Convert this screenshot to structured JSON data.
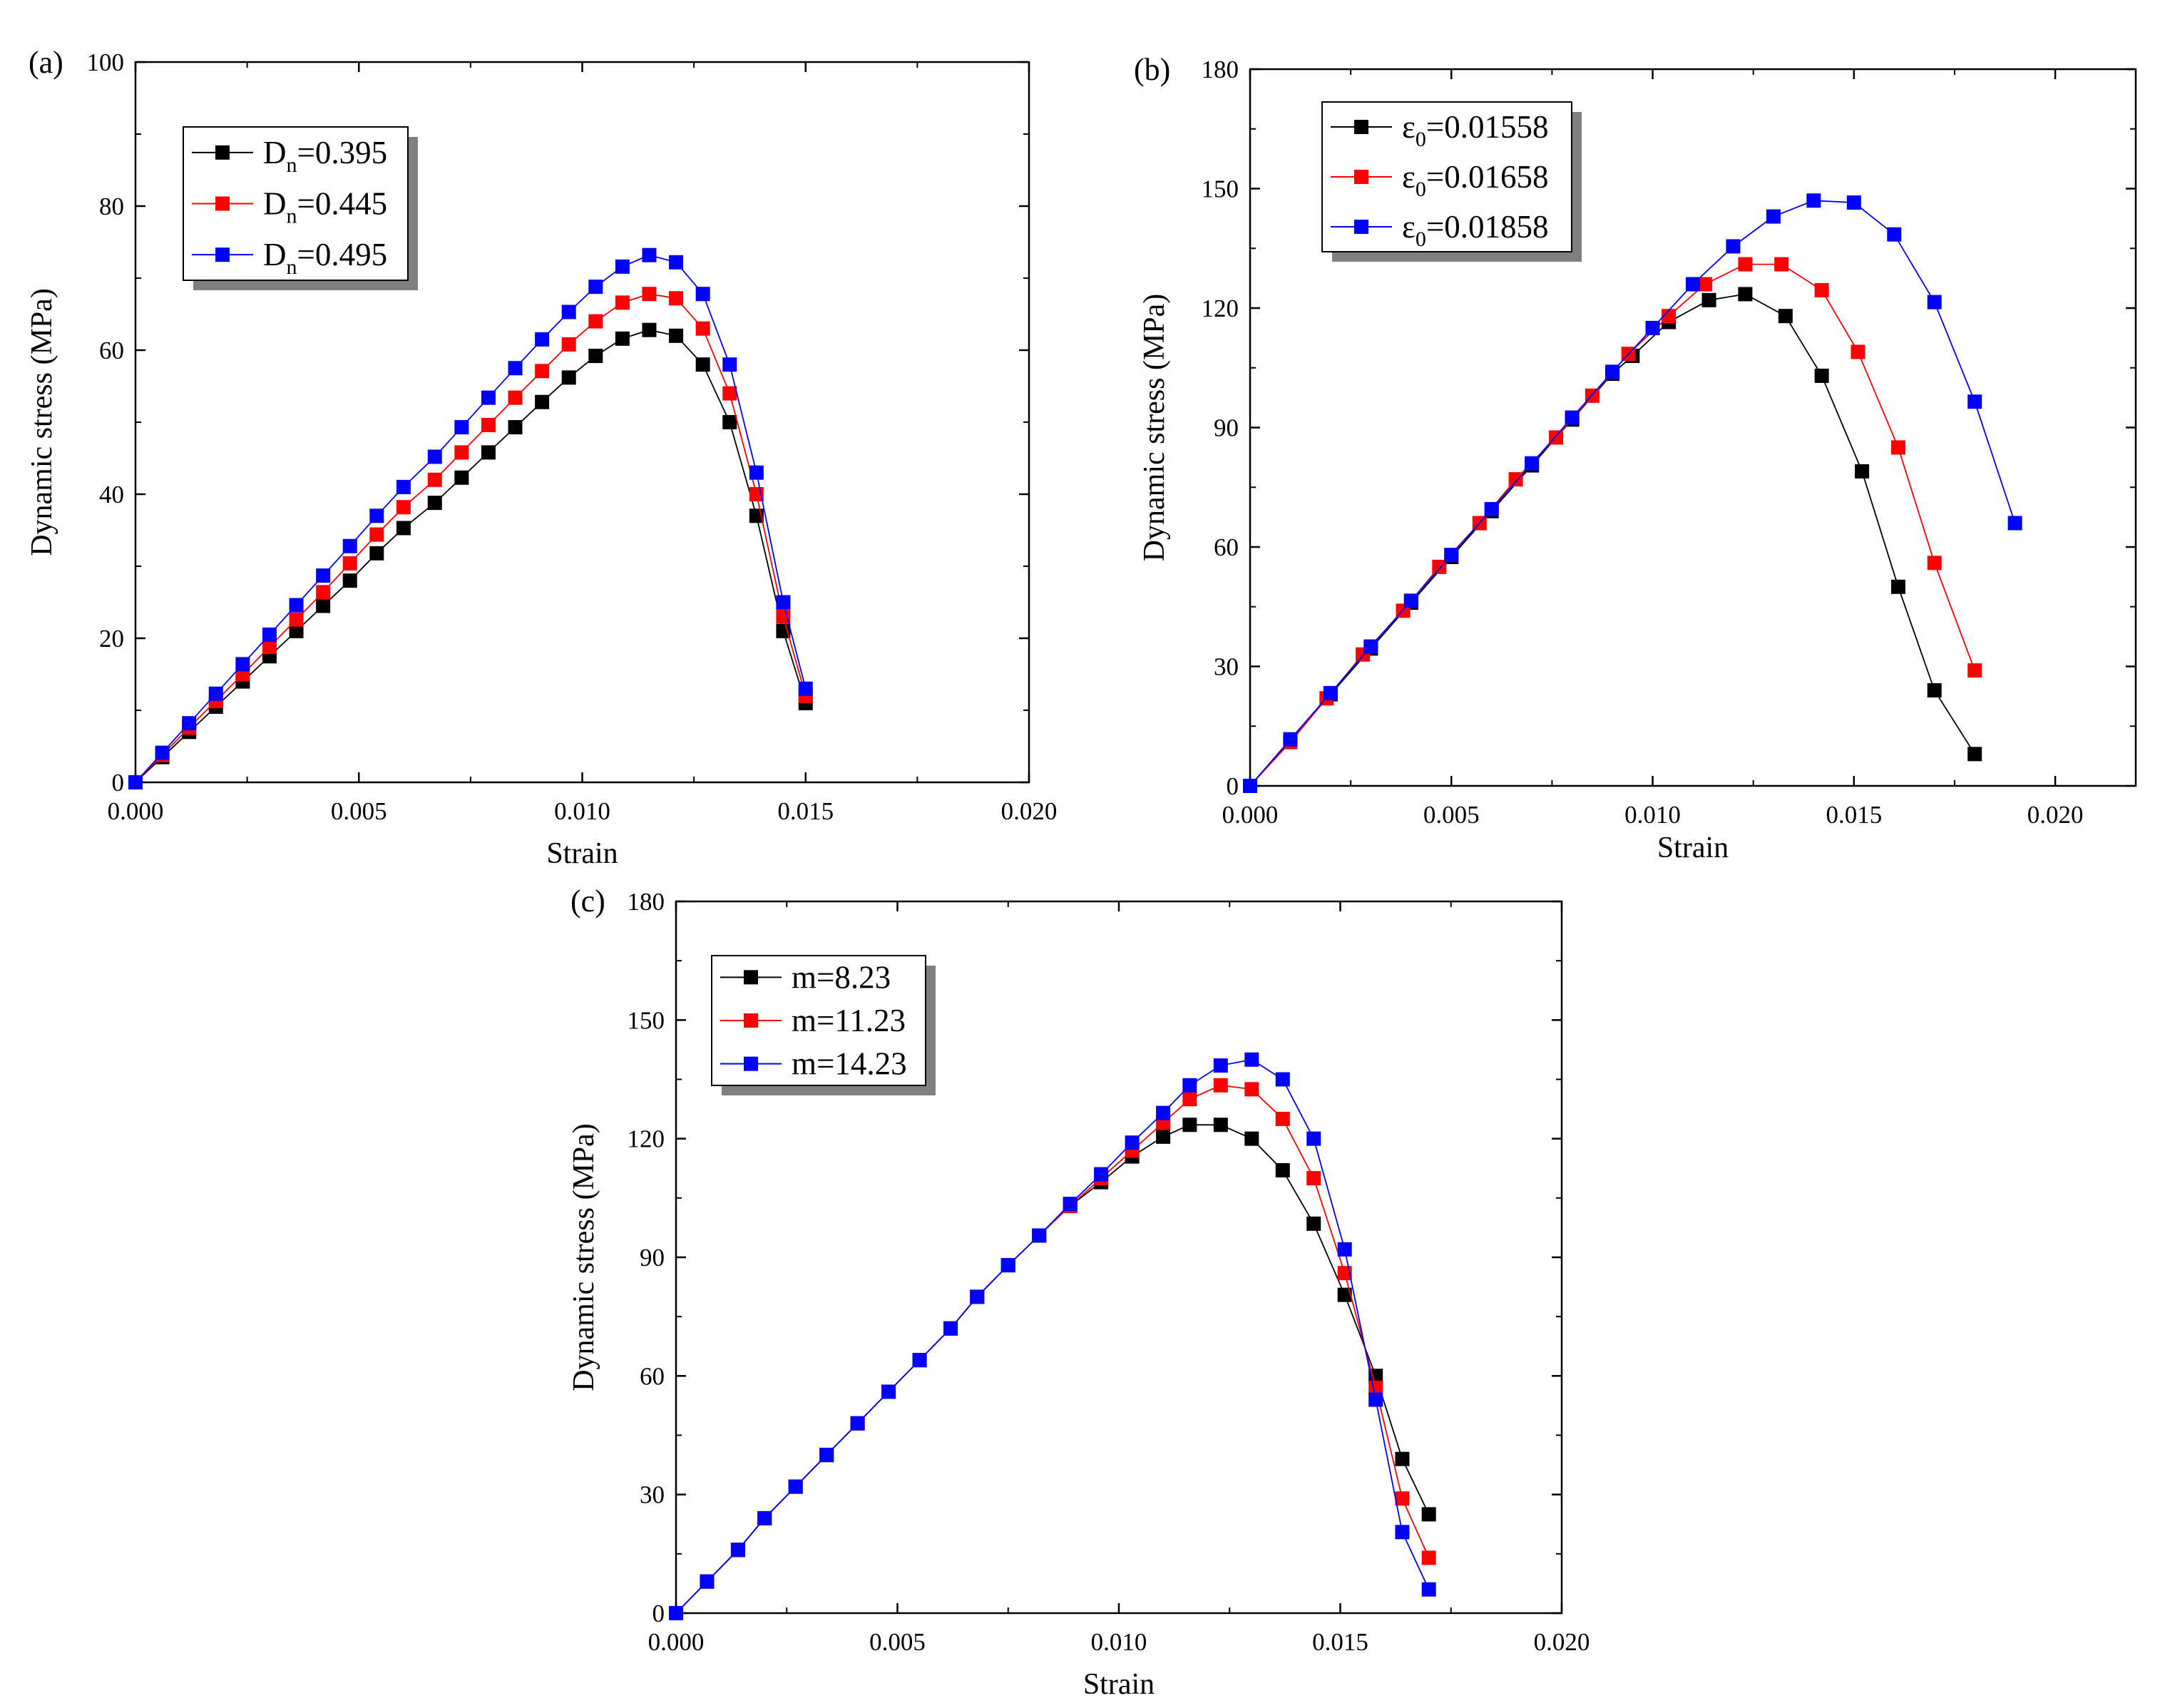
{
  "chart_data": [
    {
      "panel_label": "(a)",
      "type": "line",
      "xlabel": "Strain",
      "ylabel": "Dynamic stress (MPa)",
      "xlim": [
        0,
        0.02
      ],
      "ylim": [
        0,
        100
      ],
      "xticks": [
        "0.000",
        "0.005",
        "0.010",
        "0.015",
        "0.020"
      ],
      "yticks": [
        "0",
        "20",
        "40",
        "60",
        "80",
        "100"
      ],
      "legend": [
        {
          "main": "D",
          "sub": "n",
          "rest": "=0.395"
        },
        {
          "main": "D",
          "sub": "n",
          "rest": "=0.445"
        },
        {
          "main": "D",
          "sub": "n",
          "rest": "=0.495"
        }
      ],
      "series": [
        {
          "name": "Dn=0.395",
          "color": "#000000",
          "x": [
            0,
            0.0006,
            0.0012,
            0.0018,
            0.0024,
            0.003,
            0.0036,
            0.0042,
            0.0048,
            0.0054,
            0.006,
            0.0067,
            0.0073,
            0.0079,
            0.0085,
            0.0091,
            0.0097,
            0.0103,
            0.0109,
            0.0115,
            0.0121,
            0.0127,
            0.0133,
            0.0139,
            0.0145,
            0.015
          ],
          "y": [
            0,
            3.5,
            7,
            10.5,
            14,
            17.5,
            21,
            24.5,
            28,
            31.8,
            35.3,
            38.8,
            42.3,
            45.8,
            49.3,
            52.8,
            56.2,
            59.2,
            61.6,
            62.8,
            62,
            58,
            50,
            37,
            21,
            11
          ]
        },
        {
          "name": "Dn=0.445",
          "color": "#ff0000",
          "x": [
            0,
            0.0006,
            0.0012,
            0.0018,
            0.0024,
            0.003,
            0.0036,
            0.0042,
            0.0048,
            0.0054,
            0.006,
            0.0067,
            0.0073,
            0.0079,
            0.0085,
            0.0091,
            0.0097,
            0.0103,
            0.0109,
            0.0115,
            0.0121,
            0.0127,
            0.0133,
            0.0139,
            0.0145,
            0.015
          ],
          "y": [
            0,
            3.8,
            7.6,
            11.3,
            15,
            18.8,
            22.6,
            26.4,
            30.4,
            34.4,
            38.2,
            42,
            45.8,
            49.6,
            53.4,
            57.1,
            60.8,
            64,
            66.6,
            67.8,
            67.2,
            63,
            54,
            40,
            23,
            12
          ]
        },
        {
          "name": "Dn=0.495",
          "color": "#0000ff",
          "x": [
            0,
            0.0006,
            0.0012,
            0.0018,
            0.0024,
            0.003,
            0.0036,
            0.0042,
            0.0048,
            0.0054,
            0.006,
            0.0067,
            0.0073,
            0.0079,
            0.0085,
            0.0091,
            0.0097,
            0.0103,
            0.0109,
            0.0115,
            0.0121,
            0.0127,
            0.0133,
            0.0139,
            0.0145,
            0.015
          ],
          "y": [
            0,
            4.1,
            8.2,
            12.3,
            16.4,
            20.5,
            24.6,
            28.7,
            32.8,
            37,
            41,
            45.2,
            49.3,
            53.4,
            57.5,
            61.5,
            65.3,
            68.8,
            71.6,
            73.2,
            72.2,
            67.8,
            58,
            43,
            25,
            13
          ]
        }
      ]
    },
    {
      "panel_label": "(b)",
      "type": "line",
      "xlabel": "Strain",
      "ylabel": "Dynamic stress (MPa)",
      "xlim": [
        0,
        0.022
      ],
      "ylim": [
        0,
        180
      ],
      "xticks": [
        "0.000",
        "0.005",
        "0.010",
        "0.015",
        "0.020"
      ],
      "yticks": [
        "0",
        "30",
        "60",
        "90",
        "120",
        "150",
        "180"
      ],
      "legend": [
        {
          "main": "ε",
          "sub": "0",
          "rest": "=0.01558"
        },
        {
          "main": "ε",
          "sub": "0",
          "rest": "=0.01658"
        },
        {
          "main": "ε",
          "sub": "0",
          "rest": "=0.01858"
        }
      ],
      "series": [
        {
          "name": "ε0=0.01558",
          "color": "#000000",
          "x": [
            0,
            0.001,
            0.002,
            0.003,
            0.004,
            0.005,
            0.006,
            0.007,
            0.008,
            0.009,
            0.0095,
            0.0104,
            0.0114,
            0.0123,
            0.0133,
            0.0142,
            0.0152,
            0.0161,
            0.017,
            0.018
          ],
          "y": [
            0,
            11.5,
            23,
            34.5,
            46,
            57.5,
            69,
            80.5,
            92,
            103.5,
            108,
            116.5,
            122,
            123.5,
            118,
            103,
            79,
            50,
            24,
            8
          ]
        },
        {
          "name": "ε0=0.01658",
          "color": "#ff0000",
          "x": [
            0,
            0.001,
            0.0019,
            0.0028,
            0.0038,
            0.0047,
            0.0057,
            0.0066,
            0.0076,
            0.0085,
            0.0094,
            0.0104,
            0.0113,
            0.0123,
            0.0132,
            0.0142,
            0.0151,
            0.0161,
            0.017,
            0.018
          ],
          "y": [
            0,
            11,
            22,
            33,
            44,
            55,
            66,
            77,
            87.5,
            98,
            108.5,
            118,
            126,
            131,
            131,
            124.5,
            109,
            85,
            56,
            29
          ]
        },
        {
          "name": "ε0=0.01858",
          "color": "#0000ff",
          "x": [
            0,
            0.001,
            0.002,
            0.003,
            0.004,
            0.005,
            0.006,
            0.007,
            0.008,
            0.009,
            0.01,
            0.011,
            0.012,
            0.013,
            0.014,
            0.015,
            0.016,
            0.017,
            0.018,
            0.019
          ],
          "y": [
            0,
            11.7,
            23.3,
            35,
            46.5,
            58,
            69.5,
            81,
            92.5,
            104,
            115,
            126,
            135.5,
            143,
            147,
            146.5,
            138.5,
            121.5,
            96.5,
            66
          ]
        }
      ]
    },
    {
      "panel_label": "(c)",
      "type": "line",
      "xlabel": "Strain",
      "ylabel": "Dynamic stress (MPa)",
      "xlim": [
        0,
        0.02
      ],
      "ylim": [
        0,
        180
      ],
      "xticks": [
        "0.000",
        "0.005",
        "0.010",
        "0.015",
        "0.020"
      ],
      "yticks": [
        "0",
        "30",
        "60",
        "90",
        "120",
        "150",
        "180"
      ],
      "legend": [
        {
          "main": "m=8.23",
          "sub": "",
          "rest": ""
        },
        {
          "main": "m=11.23",
          "sub": "",
          "rest": ""
        },
        {
          "main": "m=14.23",
          "sub": "",
          "rest": ""
        }
      ],
      "series": [
        {
          "name": "m=8.23",
          "color": "#000000",
          "x": [
            0,
            0.0007,
            0.0014,
            0.002,
            0.0027,
            0.0034,
            0.0041,
            0.0048,
            0.0055,
            0.0062,
            0.0068,
            0.0075,
            0.0082,
            0.0089,
            0.0096,
            0.0103,
            0.011,
            0.0116,
            0.0123,
            0.013,
            0.0137,
            0.0144,
            0.0151,
            0.0158,
            0.0164,
            0.017
          ],
          "y": [
            0,
            8,
            16,
            24,
            32,
            40,
            48,
            56,
            64,
            72,
            80,
            88,
            95.5,
            103,
            109,
            115.5,
            120.5,
            123.5,
            123.5,
            120,
            112,
            98.5,
            80.5,
            60,
            39,
            25
          ]
        },
        {
          "name": "m=11.23",
          "color": "#ff0000",
          "x": [
            0,
            0.0007,
            0.0014,
            0.002,
            0.0027,
            0.0034,
            0.0041,
            0.0048,
            0.0055,
            0.0062,
            0.0068,
            0.0075,
            0.0082,
            0.0089,
            0.0096,
            0.0103,
            0.011,
            0.0116,
            0.0123,
            0.013,
            0.0137,
            0.0144,
            0.0151,
            0.0158,
            0.0164,
            0.017
          ],
          "y": [
            0,
            8,
            16,
            24,
            32,
            40,
            48,
            56,
            64,
            72,
            80,
            88,
            95.5,
            103,
            110,
            117,
            124,
            130,
            133.5,
            132.5,
            125,
            110,
            86,
            57,
            29,
            14
          ]
        },
        {
          "name": "m=14.23",
          "color": "#0000ff",
          "x": [
            0,
            0.0007,
            0.0014,
            0.002,
            0.0027,
            0.0034,
            0.0041,
            0.0048,
            0.0055,
            0.0062,
            0.0068,
            0.0075,
            0.0082,
            0.0089,
            0.0096,
            0.0103,
            0.011,
            0.0116,
            0.0123,
            0.013,
            0.0137,
            0.0144,
            0.0151,
            0.0158,
            0.0164,
            0.017
          ],
          "y": [
            0,
            8,
            16,
            24,
            32,
            40,
            48,
            56,
            64,
            72,
            80,
            88,
            95.5,
            103.5,
            111,
            119,
            126.5,
            133.5,
            138.5,
            140,
            135,
            120,
            92,
            54,
            20.5,
            6
          ]
        }
      ]
    }
  ]
}
